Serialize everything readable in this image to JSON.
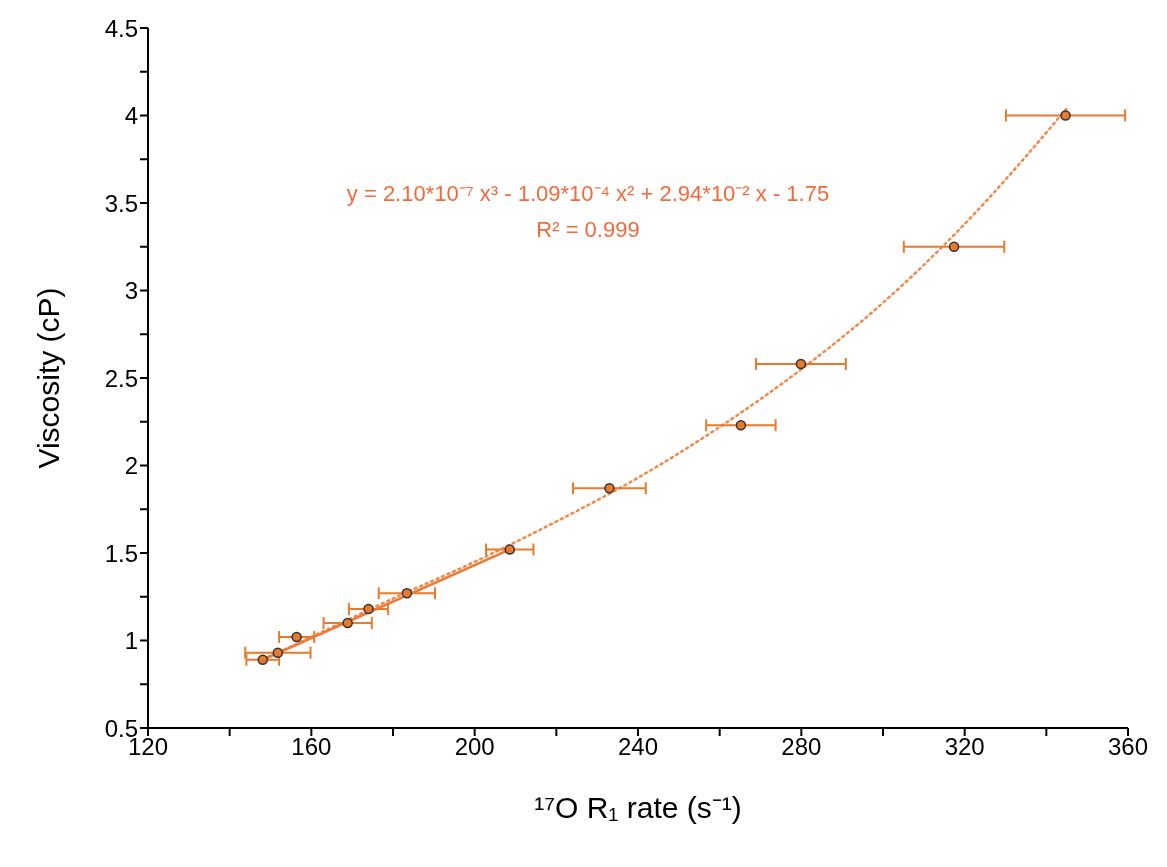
{
  "chart_data": {
    "type": "scatter",
    "xlabel": "¹⁷O R₁ rate (s⁻¹)",
    "ylabel": "Viscosity (cP)",
    "annotations": [
      "y = 2.10*10⁻⁷ x³ - 1.09*10⁻⁴ x² + 2.94*10⁻² x - 1.75",
      "R² = 0.999"
    ],
    "xlim": [
      120,
      360
    ],
    "xticks": [
      120,
      {
        "value": 140,
        "label": null
      },
      160,
      {
        "value": 180,
        "label": null
      },
      200,
      {
        "value": 220,
        "label": null
      },
      240,
      {
        "value": 260,
        "label": null
      },
      280,
      {
        "value": 300,
        "label": null
      },
      320,
      {
        "value": 340,
        "label": null
      },
      360
    ],
    "ylim": [
      0.5,
      4.5
    ],
    "yticks": [
      0.5,
      {
        "value": 0.75,
        "label": null
      },
      1,
      {
        "value": 1.25,
        "label": null
      },
      1.5,
      {
        "value": 1.75,
        "label": null
      },
      2,
      {
        "value": 2.25,
        "label": null
      },
      2.5,
      {
        "value": 2.75,
        "label": null
      },
      3,
      {
        "value": 3.25,
        "label": null
      },
      3.5,
      {
        "value": 3.75,
        "label": null
      },
      4,
      {
        "value": 4.25,
        "label": null
      },
      4.5
    ],
    "series": [
      {
        "type": "line",
        "color": "#f08a4b",
        "line_style": "dotted",
        "marker": "none",
        "x": [
          148,
          160,
          180,
          200,
          220,
          240,
          260,
          280,
          300,
          320,
          345
        ],
        "values": [
          0.89,
          1.02,
          1.24,
          1.45,
          1.68,
          1.93,
          2.22,
          2.55,
          2.93,
          3.38,
          4.04
        ]
      },
      {
        "type": "line",
        "color": "#ee7a3a",
        "line_style": "solid",
        "marker": "none",
        "x": [
          148.1,
          208.6
        ],
        "values": [
          0.89,
          1.52
        ]
      },
      {
        "color": "#e87a2e",
        "marker": "circle",
        "x": [
          148.1,
          151.8,
          156.4,
          168.9,
          174.0,
          183.4,
          208.6,
          233.0,
          265.2,
          279.9,
          317.4,
          344.7
        ],
        "values": [
          0.89,
          0.93,
          1.02,
          1.1,
          1.18,
          1.27,
          1.52,
          1.87,
          2.23,
          2.58,
          3.25,
          4.0
        ],
        "xerrors": [
          4,
          8,
          4.3,
          5.9,
          4.8,
          6.9,
          5.8,
          8.9,
          8.5,
          11,
          12.3,
          14.6
        ]
      }
    ]
  }
}
